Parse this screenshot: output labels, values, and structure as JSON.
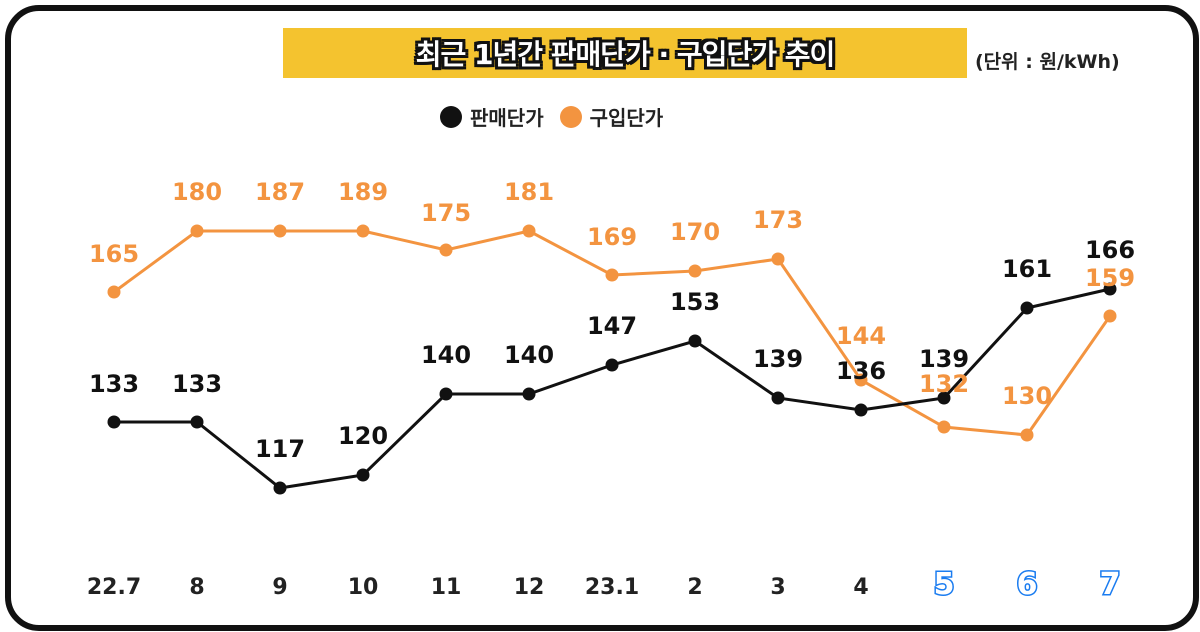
{
  "title": "최근 1년간 판매단가 · 구입단가 추이",
  "unit_label": "(단위 : 원/kWh)",
  "legend": [
    {
      "label": "판매단가",
      "color": "#111111"
    },
    {
      "label": "구입단가",
      "color": "#f39440"
    }
  ],
  "colors": {
    "title_bar": "#f4c32f",
    "sale": "#111111",
    "purchase": "#f39440",
    "highlight_month": "#1a7cf0"
  },
  "chart_data": {
    "type": "line",
    "title": "최근 1년간 판매단가 · 구입단가 추이",
    "subtitle": "(단위 : 원/kWh)",
    "xlabel": "",
    "ylabel": "원/kWh",
    "categories": [
      "22.7",
      "8",
      "9",
      "10",
      "11",
      "12",
      "23.1",
      "2",
      "3",
      "4",
      "5",
      "6",
      "7"
    ],
    "highlighted_categories": [
      "5",
      "6",
      "7"
    ],
    "series": [
      {
        "name": "판매단가",
        "color": "#111111",
        "values": [
          133,
          133,
          117,
          120,
          140,
          140,
          147,
          153,
          139,
          136,
          139,
          161,
          166
        ]
      },
      {
        "name": "구입단가",
        "color": "#f39440",
        "values": [
          165,
          180,
          187,
          189,
          175,
          181,
          169,
          170,
          173,
          144,
          132,
          130,
          159
        ]
      }
    ],
    "legend_position": "top",
    "grid": false,
    "axes_visible": false
  }
}
